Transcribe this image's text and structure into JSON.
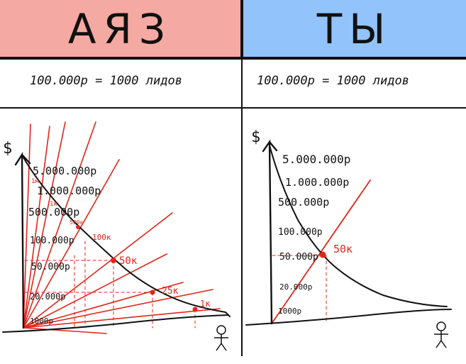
{
  "colors": {
    "left_bg": "#f4aaa2",
    "right_bg": "#92c4fb",
    "red": "#e0261b",
    "ink": "#111111"
  },
  "left": {
    "title": "АЯЗ",
    "rate": "100.000р = 1000 лидов",
    "y_symbol": "$",
    "levels": [
      "5.000.000р",
      "1.000.000р",
      "500.000р",
      "100.000р",
      "50.000р",
      "20.000р",
      "1000р"
    ],
    "ray_labels": [
      "1м",
      "1к",
      "500к",
      "100к",
      "50к",
      "25к",
      "1к"
    ]
  },
  "right": {
    "title": "ТЫ",
    "rate": "100.000р = 1000 лидов",
    "y_symbol": "$",
    "levels": [
      "5.000.000р",
      "1.000.000р",
      "500.000р",
      "100.000р",
      "50.000р",
      "20.000р",
      "1000р"
    ],
    "point_label": "50к"
  }
}
